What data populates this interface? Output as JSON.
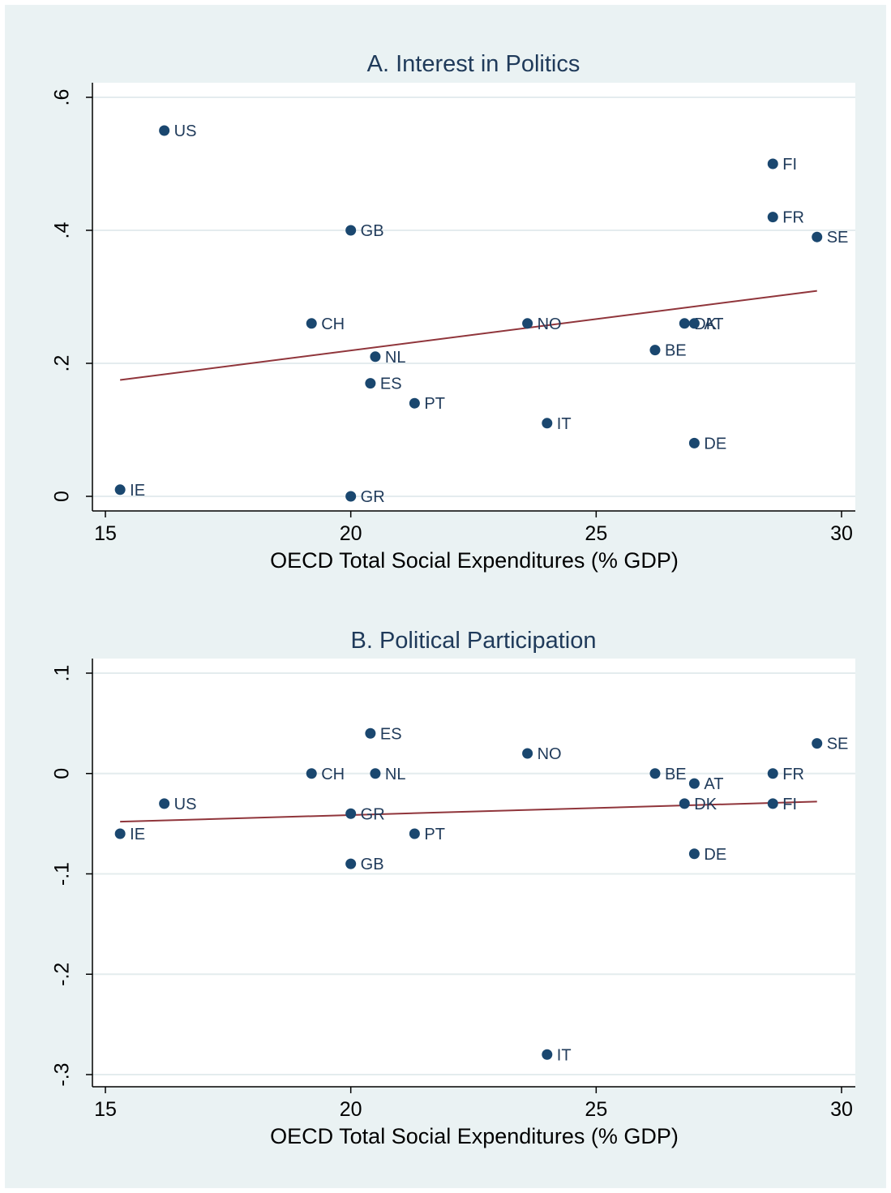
{
  "colors": {
    "outer_background": "#eaf2f3",
    "plot_background": "#ffffff",
    "gridline": "#e4ecee",
    "marker": "#1a476f",
    "fit_line": "#90353b",
    "title": "#1f3a5a"
  },
  "chart_data": [
    {
      "type": "scatter",
      "title": "A. Interest in Politics",
      "xlabel": "OECD Total Social Expenditures (% GDP)",
      "ylabel": "",
      "xlim": [
        15,
        30
      ],
      "ylim": [
        0,
        0.6
      ],
      "x_ticks": [
        15,
        20,
        25,
        30
      ],
      "x_tick_labels": [
        "15",
        "20",
        "25",
        "30"
      ],
      "y_ticks": [
        0,
        0.2,
        0.4,
        0.6
      ],
      "y_tick_labels": [
        "0",
        ".2",
        ".4",
        ".6"
      ],
      "grid": true,
      "points": [
        {
          "label": "US",
          "x": 16.2,
          "y": 0.55
        },
        {
          "label": "FI",
          "x": 28.6,
          "y": 0.5
        },
        {
          "label": "FR",
          "x": 28.6,
          "y": 0.42
        },
        {
          "label": "GB",
          "x": 20.0,
          "y": 0.4
        },
        {
          "label": "SE",
          "x": 29.5,
          "y": 0.39
        },
        {
          "label": "CH",
          "x": 19.2,
          "y": 0.26
        },
        {
          "label": "NO",
          "x": 23.6,
          "y": 0.26
        },
        {
          "label": "DK",
          "x": 26.8,
          "y": 0.26
        },
        {
          "label": "AT",
          "x": 27.0,
          "y": 0.26
        },
        {
          "label": "BE",
          "x": 26.2,
          "y": 0.22
        },
        {
          "label": "NL",
          "x": 20.5,
          "y": 0.21
        },
        {
          "label": "ES",
          "x": 20.4,
          "y": 0.17
        },
        {
          "label": "PT",
          "x": 21.3,
          "y": 0.14
        },
        {
          "label": "IT",
          "x": 24.0,
          "y": 0.11
        },
        {
          "label": "DE",
          "x": 27.0,
          "y": 0.08
        },
        {
          "label": "IE",
          "x": 15.3,
          "y": 0.01
        },
        {
          "label": "GR",
          "x": 20.0,
          "y": 0.0
        }
      ],
      "fit_line": {
        "x": [
          15.3,
          29.5
        ],
        "y": [
          0.175,
          0.309
        ]
      }
    },
    {
      "type": "scatter",
      "title": "B. Political Participation",
      "xlabel": "OECD Total Social Expenditures (% GDP)",
      "ylabel": "",
      "xlim": [
        15,
        30
      ],
      "ylim": [
        -0.3,
        0.1
      ],
      "x_ticks": [
        15,
        20,
        25,
        30
      ],
      "x_tick_labels": [
        "15",
        "20",
        "25",
        "30"
      ],
      "y_ticks": [
        -0.3,
        -0.2,
        -0.1,
        0,
        0.1
      ],
      "y_tick_labels": [
        "-.3",
        "-.2",
        "-.1",
        "0",
        ".1"
      ],
      "grid": true,
      "points": [
        {
          "label": "ES",
          "x": 20.4,
          "y": 0.04
        },
        {
          "label": "SE",
          "x": 29.5,
          "y": 0.03
        },
        {
          "label": "NO",
          "x": 23.6,
          "y": 0.02
        },
        {
          "label": "CH",
          "x": 19.2,
          "y": 0.0
        },
        {
          "label": "NL",
          "x": 20.5,
          "y": 0.0
        },
        {
          "label": "BE",
          "x": 26.2,
          "y": 0.0
        },
        {
          "label": "FR",
          "x": 28.6,
          "y": 0.0
        },
        {
          "label": "AT",
          "x": 27.0,
          "y": -0.01
        },
        {
          "label": "US",
          "x": 16.2,
          "y": -0.03
        },
        {
          "label": "DK",
          "x": 26.8,
          "y": -0.03
        },
        {
          "label": "FI",
          "x": 28.6,
          "y": -0.03
        },
        {
          "label": "GR",
          "x": 20.0,
          "y": -0.04
        },
        {
          "label": "IE",
          "x": 15.3,
          "y": -0.06
        },
        {
          "label": "PT",
          "x": 21.3,
          "y": -0.06
        },
        {
          "label": "DE",
          "x": 27.0,
          "y": -0.08
        },
        {
          "label": "GB",
          "x": 20.0,
          "y": -0.09
        },
        {
          "label": "IT",
          "x": 24.0,
          "y": -0.28
        }
      ],
      "fit_line": {
        "x": [
          15.3,
          29.5
        ],
        "y": [
          -0.048,
          -0.028
        ]
      }
    }
  ]
}
